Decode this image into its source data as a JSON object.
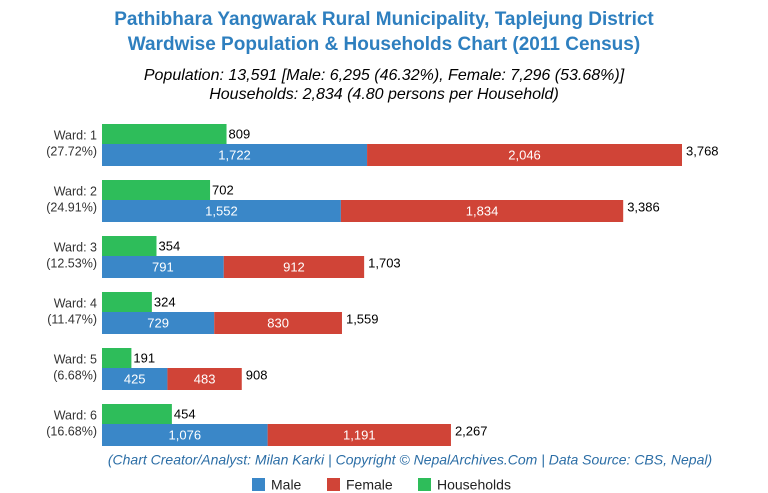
{
  "chart_data": {
    "type": "stacked-bar",
    "title": [
      "Pathibhara Yangwarak Rural Municipality, Taplejung District",
      "Wardwise Population & Households Chart (2011 Census)"
    ],
    "subtitle": [
      "Population: 13,591 [Male: 6,295 (46.32%), Female: 7,296 (53.68%)]",
      "Households: 2,834 (4.80 persons per Household)"
    ],
    "credit": "(Chart Creator/Analyst: Milan Karki | Copyright © NepalArchives.Com | Data Source: CBS, Nepal)",
    "categories": [
      "Ward: 1",
      "Ward: 2",
      "Ward: 3",
      "Ward: 4",
      "Ward: 5",
      "Ward: 6"
    ],
    "category_shares": [
      "(27.72%)",
      "(24.91%)",
      "(12.53%)",
      "(11.47%)",
      "(6.68%)",
      "(16.68%)"
    ],
    "series": [
      {
        "name": "Male",
        "color": "#3a87c8",
        "values": [
          1722,
          1552,
          791,
          729,
          425,
          1076
        ],
        "value_labels": [
          "1,722",
          "1,552",
          "791",
          "729",
          "425",
          "1,076"
        ]
      },
      {
        "name": "Female",
        "color": "#d04437",
        "values": [
          2046,
          1834,
          912,
          830,
          483,
          1191
        ],
        "value_labels": [
          "2,046",
          "1,834",
          "912",
          "830",
          "483",
          "1,191"
        ]
      },
      {
        "name": "Households",
        "color": "#2ebd5a",
        "values": [
          809,
          702,
          354,
          324,
          191,
          454
        ],
        "value_labels": [
          "809",
          "702",
          "354",
          "324",
          "191",
          "454"
        ]
      }
    ],
    "totals": {
      "values": [
        3768,
        3386,
        1703,
        1559,
        908,
        2267
      ],
      "value_labels": [
        "3,768",
        "3,386",
        "1,703",
        "1,559",
        "908",
        "2,267"
      ]
    }
  }
}
